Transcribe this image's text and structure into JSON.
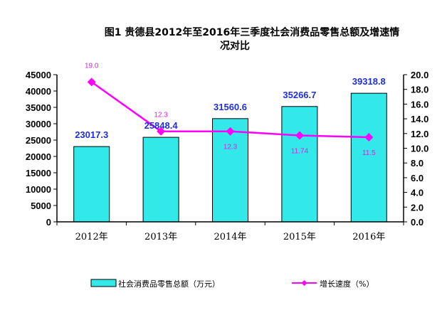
{
  "chart_data": {
    "type": "bar",
    "title_line1": "图1        贵德县2012年至2016年三季度社会消费品零售总额及增速情",
    "title_line2": "况对比",
    "categories": [
      "2012年",
      "2013年",
      "2014年",
      "2015年",
      "2016年"
    ],
    "series": [
      {
        "name": "社会消费品零售总额（万元）",
        "type": "bar",
        "axis": "left",
        "color": "#33e8e8",
        "values": [
          23017.3,
          25848.4,
          31560.6,
          35266.7,
          39318.8
        ],
        "labels": [
          "23017.3",
          "25848.4",
          "31560.6",
          "35266.7",
          "39318.8"
        ]
      },
      {
        "name": "增长速度（%）",
        "type": "line",
        "axis": "right",
        "color": "#ff00ff",
        "values": [
          19.0,
          12.3,
          12.3,
          11.74,
          11.5
        ],
        "labels": [
          "19.0",
          "12.3",
          "12.3",
          "11.74",
          "11.5"
        ]
      }
    ],
    "y_left": {
      "min": 0,
      "max": 45000,
      "step": 5000,
      "ticks": [
        "0",
        "5000",
        "10000",
        "15000",
        "20000",
        "25000",
        "30000",
        "35000",
        "40000",
        "45000"
      ]
    },
    "y_right": {
      "min": 0,
      "max": 20,
      "step": 2,
      "ticks": [
        "0.0",
        "2.0",
        "4.0",
        "6.0",
        "8.0",
        "10.0",
        "12.0",
        "14.0",
        "16.0",
        "18.0",
        "20.0"
      ]
    },
    "grid": false,
    "legend": "bottom"
  }
}
